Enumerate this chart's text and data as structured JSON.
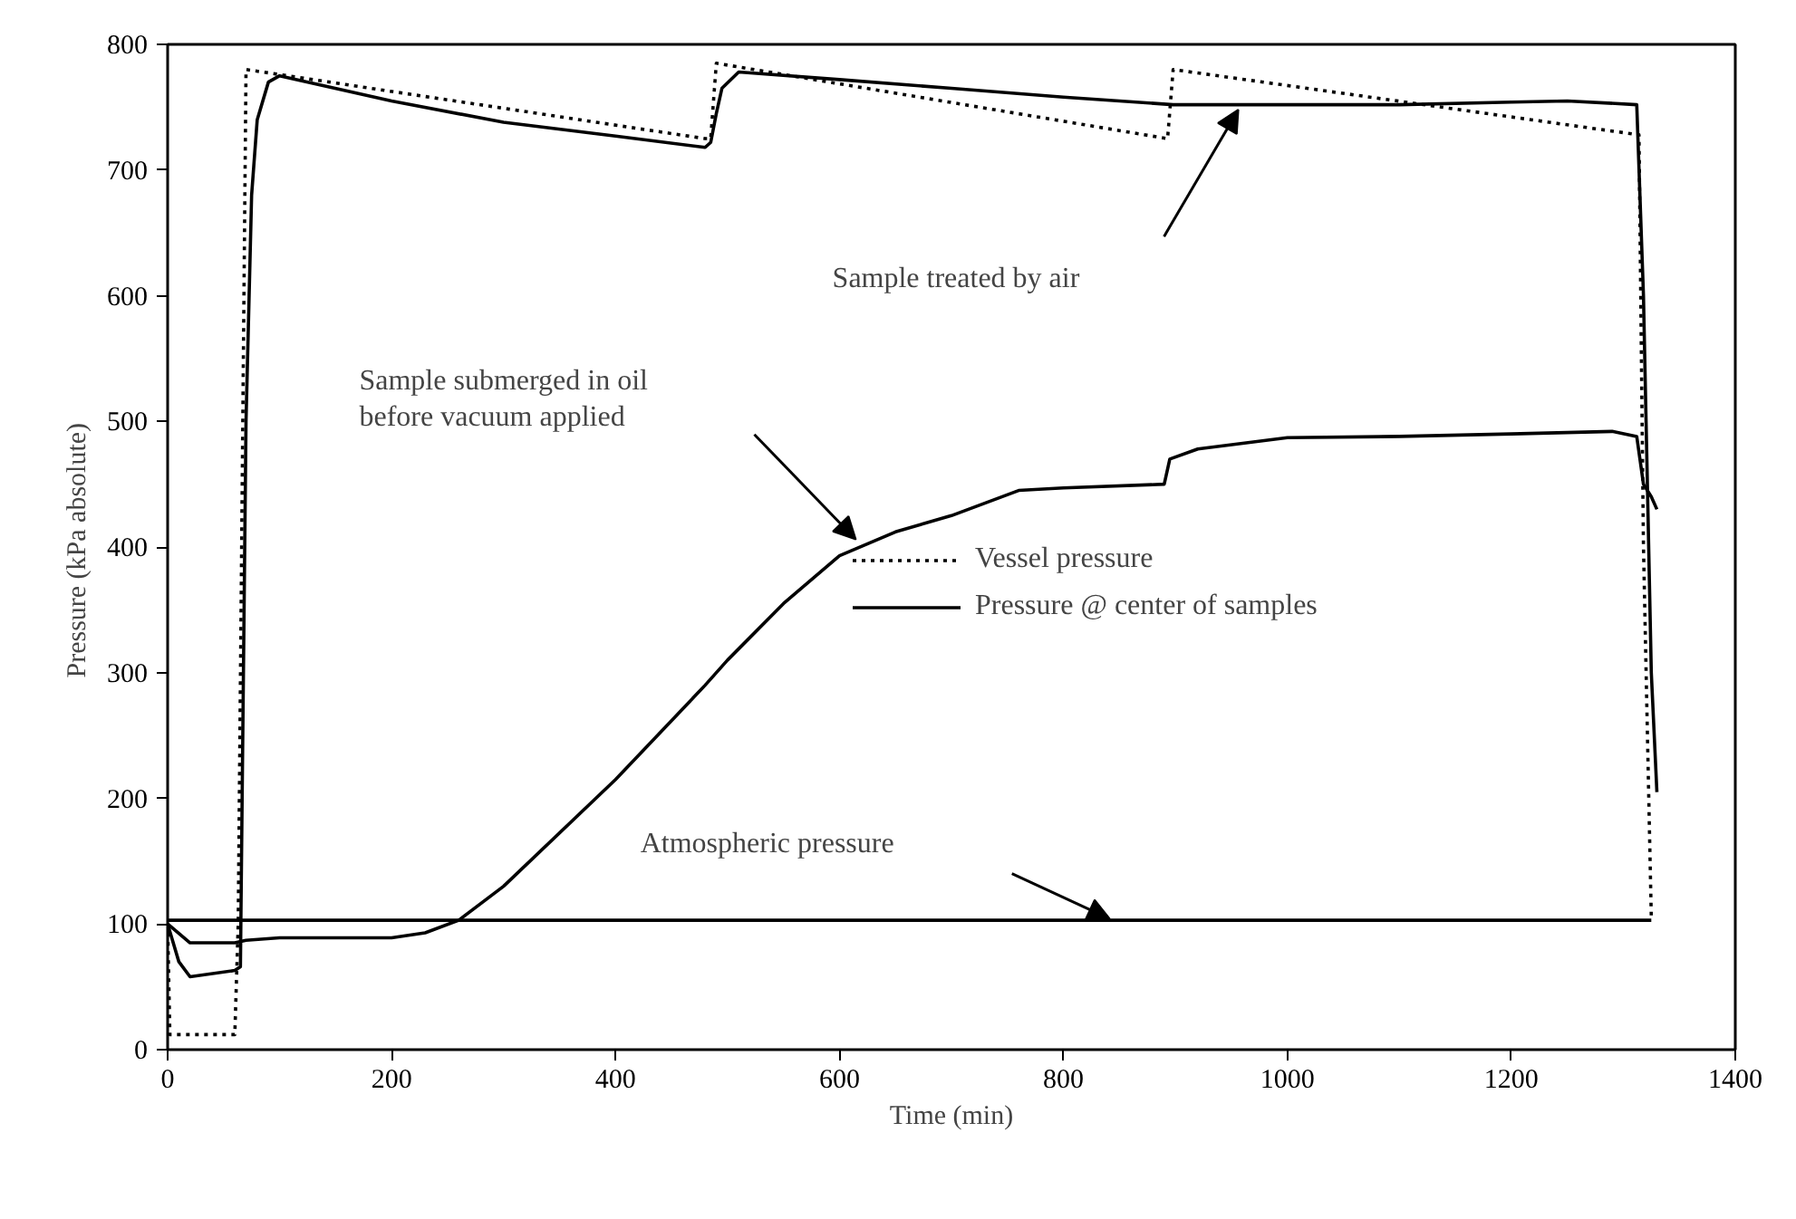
{
  "chart_data": {
    "type": "line",
    "xlabel": "Time (min)",
    "ylabel": "Pressure (kPa  absolute)",
    "xlim": [
      0,
      1400
    ],
    "xticks": [
      0,
      200,
      400,
      600,
      800,
      1000,
      1200,
      1400
    ],
    "ylim": [
      0,
      800
    ],
    "yticks": [
      0,
      100,
      200,
      300,
      400,
      500,
      600,
      700,
      800
    ],
    "grid": false,
    "legend": "center right",
    "series": [
      {
        "name": "Vessel pressure",
        "color": "#000000",
        "line_style": "dotted",
        "x": [
          0,
          2,
          60,
          63,
          70,
          480,
          485,
          490,
          893,
          898,
          1314,
          1318,
          1325
        ],
        "values": [
          100,
          12,
          12,
          100,
          780,
          725,
          725,
          785,
          725,
          780,
          728,
          400,
          105
        ]
      },
      {
        "name": "Pressure @ center of samples",
        "color": "#000000",
        "line_style": "solid",
        "x": [
          0,
          10,
          20,
          60,
          65,
          70,
          75,
          80,
          90,
          100,
          200,
          300,
          400,
          480,
          485,
          490,
          495,
          510,
          600,
          700,
          800,
          898,
          1000,
          1100,
          1200,
          1250,
          1312,
          1318,
          1325,
          1330
        ],
        "values": [
          100,
          70,
          58,
          63,
          66,
          500,
          680,
          740,
          770,
          775,
          755,
          738,
          727,
          718,
          722,
          745,
          765,
          778,
          772,
          765,
          758,
          752,
          752,
          752,
          754,
          755,
          752,
          600,
          300,
          205
        ]
      },
      {
        "color": "#000000",
        "line_style": "solid",
        "x": [
          0,
          20,
          60,
          70,
          100,
          200,
          230,
          260,
          300,
          400,
          480,
          500,
          550,
          600,
          650,
          700,
          760,
          800,
          890,
          895,
          920,
          1000,
          1100,
          1200,
          1290,
          1312,
          1318,
          1325,
          1330
        ],
        "values": [
          100,
          85,
          85,
          87,
          89,
          89,
          93,
          103,
          130,
          215,
          290,
          310,
          355,
          393,
          412,
          425,
          445,
          447,
          450,
          470,
          478,
          487,
          488,
          490,
          492,
          488,
          450,
          440,
          430
        ]
      },
      {
        "color": "#000000",
        "line_style": "solid",
        "x": [
          0,
          1325
        ],
        "values": [
          103,
          103
        ]
      }
    ],
    "annotations": [
      "Sample treated by air",
      "Sample submerged in oil\nbefore vacuum applied",
      "Atmospheric pressure"
    ]
  }
}
